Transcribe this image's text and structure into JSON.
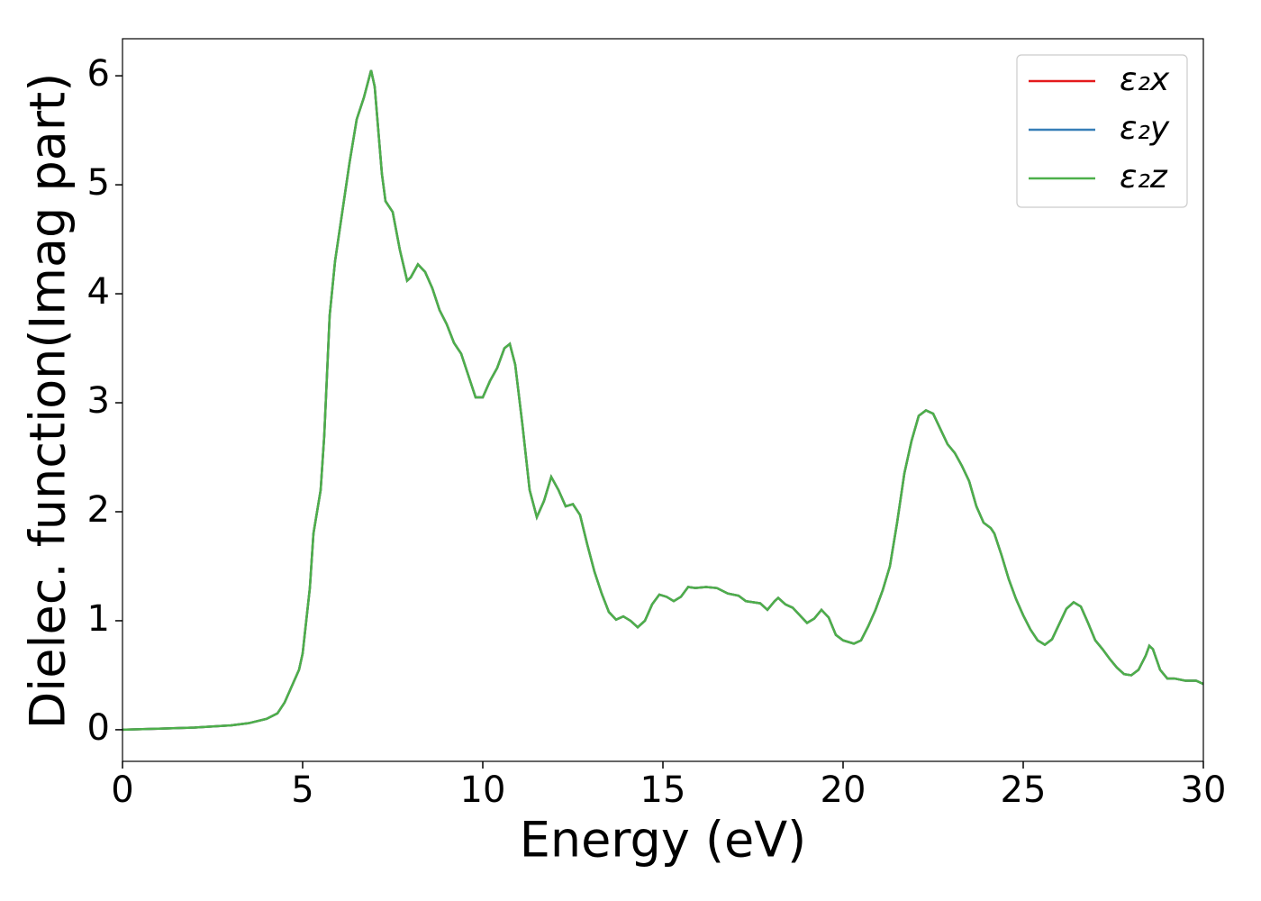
{
  "chart_data": {
    "type": "line",
    "xlabel": "Energy (eV)",
    "ylabel": "Dielec. function(Imag part)",
    "xlim": [
      0,
      30
    ],
    "ylim": [
      -0.29,
      6.34
    ],
    "xticks": [
      0,
      5,
      10,
      15,
      20,
      25,
      30
    ],
    "yticks": [
      0,
      1,
      2,
      3,
      4,
      5,
      6
    ],
    "legend": "upper right",
    "x": [
      0,
      1,
      2,
      3,
      3.5,
      4,
      4.3,
      4.5,
      4.7,
      4.9,
      5.0,
      5.2,
      5.3,
      5.5,
      5.6,
      5.75,
      5.9,
      6.1,
      6.3,
      6.5,
      6.7,
      6.9,
      7.0,
      7.2,
      7.3,
      7.5,
      7.7,
      7.9,
      8.0,
      8.2,
      8.4,
      8.6,
      8.8,
      9.0,
      9.2,
      9.4,
      9.6,
      9.8,
      10.0,
      10.2,
      10.4,
      10.6,
      10.75,
      10.9,
      11.1,
      11.3,
      11.5,
      11.7,
      11.9,
      12.1,
      12.3,
      12.5,
      12.7,
      12.9,
      13.1,
      13.3,
      13.5,
      13.7,
      13.9,
      14.1,
      14.3,
      14.5,
      14.7,
      14.9,
      15.1,
      15.3,
      15.5,
      15.7,
      15.9,
      16.2,
      16.5,
      16.8,
      17.1,
      17.3,
      17.5,
      17.7,
      17.9,
      18.1,
      18.2,
      18.4,
      18.6,
      18.8,
      19.0,
      19.2,
      19.4,
      19.6,
      19.8,
      20.0,
      20.3,
      20.5,
      20.7,
      20.9,
      21.1,
      21.3,
      21.5,
      21.7,
      21.9,
      22.1,
      22.3,
      22.5,
      22.7,
      22.9,
      23.1,
      23.3,
      23.5,
      23.7,
      23.9,
      24.1,
      24.2,
      24.4,
      24.6,
      24.8,
      25.0,
      25.2,
      25.4,
      25.6,
      25.8,
      26.0,
      26.2,
      26.4,
      26.6,
      26.8,
      27.0,
      27.2,
      27.4,
      27.6,
      27.8,
      28.0,
      28.2,
      28.4,
      28.5,
      28.6,
      28.8,
      29.0,
      29.2,
      29.5,
      29.8,
      30.0
    ],
    "series": [
      {
        "name": "ε₂x",
        "color": "#e41a1c",
        "values": [
          0.0,
          0.01,
          0.02,
          0.04,
          0.06,
          0.1,
          0.15,
          0.25,
          0.4,
          0.55,
          0.7,
          1.3,
          1.8,
          2.2,
          2.7,
          3.8,
          4.3,
          4.75,
          5.2,
          5.6,
          5.8,
          6.05,
          5.9,
          5.1,
          4.85,
          4.75,
          4.4,
          4.12,
          4.15,
          4.27,
          4.2,
          4.05,
          3.85,
          3.72,
          3.55,
          3.45,
          3.25,
          3.05,
          3.05,
          3.2,
          3.32,
          3.5,
          3.54,
          3.35,
          2.8,
          2.2,
          1.95,
          2.1,
          2.32,
          2.2,
          2.05,
          2.07,
          1.97,
          1.7,
          1.45,
          1.25,
          1.08,
          1.01,
          1.04,
          1.0,
          0.94,
          1.0,
          1.15,
          1.24,
          1.22,
          1.18,
          1.22,
          1.31,
          1.3,
          1.31,
          1.3,
          1.25,
          1.23,
          1.18,
          1.17,
          1.16,
          1.1,
          1.18,
          1.21,
          1.15,
          1.12,
          1.05,
          0.98,
          1.02,
          1.1,
          1.03,
          0.87,
          0.82,
          0.79,
          0.82,
          0.95,
          1.1,
          1.28,
          1.5,
          1.9,
          2.35,
          2.65,
          2.88,
          2.93,
          2.9,
          2.76,
          2.62,
          2.54,
          2.42,
          2.28,
          2.05,
          1.9,
          1.85,
          1.8,
          1.6,
          1.38,
          1.2,
          1.05,
          0.92,
          0.82,
          0.78,
          0.83,
          0.97,
          1.11,
          1.17,
          1.13,
          0.98,
          0.82,
          0.74,
          0.65,
          0.57,
          0.51,
          0.5,
          0.55,
          0.68,
          0.77,
          0.74,
          0.55,
          0.47,
          0.47,
          0.45,
          0.45,
          0.42
        ]
      },
      {
        "name": "ε₂y",
        "color": "#377eb8",
        "values": [
          0.0,
          0.01,
          0.02,
          0.04,
          0.06,
          0.1,
          0.15,
          0.25,
          0.4,
          0.55,
          0.7,
          1.3,
          1.8,
          2.2,
          2.7,
          3.8,
          4.3,
          4.75,
          5.2,
          5.6,
          5.8,
          6.05,
          5.9,
          5.1,
          4.85,
          4.75,
          4.4,
          4.12,
          4.15,
          4.27,
          4.2,
          4.05,
          3.85,
          3.72,
          3.55,
          3.45,
          3.25,
          3.05,
          3.05,
          3.2,
          3.32,
          3.5,
          3.54,
          3.35,
          2.8,
          2.2,
          1.95,
          2.1,
          2.32,
          2.2,
          2.05,
          2.07,
          1.97,
          1.7,
          1.45,
          1.25,
          1.08,
          1.01,
          1.04,
          1.0,
          0.94,
          1.0,
          1.15,
          1.24,
          1.22,
          1.18,
          1.22,
          1.31,
          1.3,
          1.31,
          1.3,
          1.25,
          1.23,
          1.18,
          1.17,
          1.16,
          1.1,
          1.18,
          1.21,
          1.15,
          1.12,
          1.05,
          0.98,
          1.02,
          1.1,
          1.03,
          0.87,
          0.82,
          0.79,
          0.82,
          0.95,
          1.1,
          1.28,
          1.5,
          1.9,
          2.35,
          2.65,
          2.88,
          2.93,
          2.9,
          2.76,
          2.62,
          2.54,
          2.42,
          2.28,
          2.05,
          1.9,
          1.85,
          1.8,
          1.6,
          1.38,
          1.2,
          1.05,
          0.92,
          0.82,
          0.78,
          0.83,
          0.97,
          1.11,
          1.17,
          1.13,
          0.98,
          0.82,
          0.74,
          0.65,
          0.57,
          0.51,
          0.5,
          0.55,
          0.68,
          0.77,
          0.74,
          0.55,
          0.47,
          0.47,
          0.45,
          0.45,
          0.42
        ]
      },
      {
        "name": "ε₂z",
        "color": "#4daf4a",
        "values": [
          0.0,
          0.01,
          0.02,
          0.04,
          0.06,
          0.1,
          0.15,
          0.25,
          0.4,
          0.55,
          0.7,
          1.3,
          1.8,
          2.2,
          2.7,
          3.8,
          4.3,
          4.75,
          5.2,
          5.6,
          5.8,
          6.05,
          5.9,
          5.1,
          4.85,
          4.75,
          4.4,
          4.12,
          4.15,
          4.27,
          4.2,
          4.05,
          3.85,
          3.72,
          3.55,
          3.45,
          3.25,
          3.05,
          3.05,
          3.2,
          3.32,
          3.5,
          3.54,
          3.35,
          2.8,
          2.2,
          1.95,
          2.1,
          2.32,
          2.2,
          2.05,
          2.07,
          1.97,
          1.7,
          1.45,
          1.25,
          1.08,
          1.01,
          1.04,
          1.0,
          0.94,
          1.0,
          1.15,
          1.24,
          1.22,
          1.18,
          1.22,
          1.31,
          1.3,
          1.31,
          1.3,
          1.25,
          1.23,
          1.18,
          1.17,
          1.16,
          1.1,
          1.18,
          1.21,
          1.15,
          1.12,
          1.05,
          0.98,
          1.02,
          1.1,
          1.03,
          0.87,
          0.82,
          0.79,
          0.82,
          0.95,
          1.1,
          1.28,
          1.5,
          1.9,
          2.35,
          2.65,
          2.88,
          2.93,
          2.9,
          2.76,
          2.62,
          2.54,
          2.42,
          2.28,
          2.05,
          1.9,
          1.85,
          1.8,
          1.6,
          1.38,
          1.2,
          1.05,
          0.92,
          0.82,
          0.78,
          0.83,
          0.97,
          1.11,
          1.17,
          1.13,
          0.98,
          0.82,
          0.74,
          0.65,
          0.57,
          0.51,
          0.5,
          0.55,
          0.68,
          0.77,
          0.74,
          0.55,
          0.47,
          0.47,
          0.45,
          0.45,
          0.42
        ]
      }
    ]
  }
}
